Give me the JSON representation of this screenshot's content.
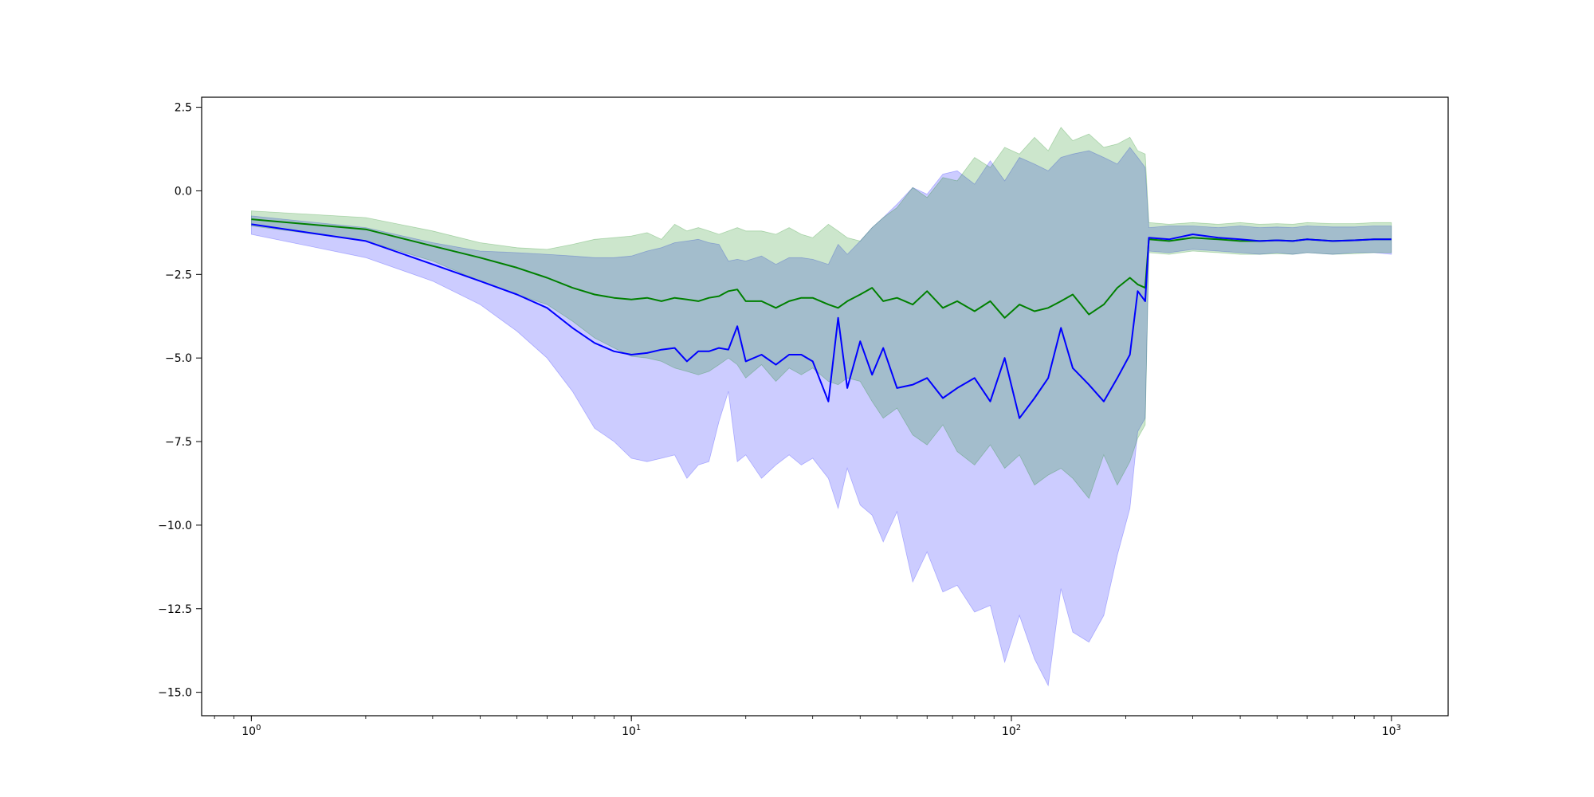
{
  "chart_data": {
    "type": "line",
    "title": "",
    "xlabel": "",
    "ylabel": "",
    "xscale": "log",
    "xlim": [
      0.74,
      1410
    ],
    "ylim": [
      -15.7,
      2.8
    ],
    "grid": false,
    "legend": "none",
    "x_ticks": [
      {
        "value": 1,
        "base": "10",
        "exp": "0"
      },
      {
        "value": 10,
        "base": "10",
        "exp": "1"
      },
      {
        "value": 100,
        "base": "10",
        "exp": "2"
      },
      {
        "value": 1000,
        "base": "10",
        "exp": "3"
      }
    ],
    "y_ticks": [
      {
        "value": 2.5,
        "label": "2.5"
      },
      {
        "value": 0.0,
        "label": "0.0"
      },
      {
        "value": -2.5,
        "label": "−2.5"
      },
      {
        "value": -5.0,
        "label": "−5.0"
      },
      {
        "value": -7.5,
        "label": "−7.5"
      },
      {
        "value": -10.0,
        "label": "−10.0"
      },
      {
        "value": -12.5,
        "label": "−12.5"
      },
      {
        "value": -15.0,
        "label": "−15.0"
      }
    ],
    "series": [
      {
        "color": "#0000ff",
        "band_opacity": 0.2,
        "x": [
          1,
          2,
          3,
          4,
          5,
          6,
          7,
          8,
          9,
          10,
          11,
          12,
          13,
          14,
          15,
          16,
          17,
          18,
          19,
          20,
          22,
          24,
          26,
          28,
          30,
          33,
          35,
          37,
          40,
          43,
          46,
          50,
          55,
          60,
          66,
          72,
          80,
          88,
          96,
          105,
          115,
          125,
          135,
          145,
          160,
          175,
          190,
          205,
          215,
          225,
          230,
          260,
          300,
          350,
          400,
          450,
          500,
          550,
          600,
          700,
          800,
          900,
          1000
        ],
        "y": [
          -1.0,
          -1.5,
          -2.2,
          -2.7,
          -3.1,
          -3.5,
          -4.1,
          -4.55,
          -4.8,
          -4.9,
          -4.85,
          -4.75,
          -4.7,
          -5.1,
          -4.8,
          -4.8,
          -4.7,
          -4.75,
          -4.05,
          -5.1,
          -4.9,
          -5.2,
          -4.9,
          -4.9,
          -5.1,
          -6.3,
          -3.8,
          -5.9,
          -4.5,
          -5.5,
          -4.7,
          -5.9,
          -5.8,
          -5.6,
          -6.2,
          -5.9,
          -5.6,
          -6.3,
          -5.0,
          -6.8,
          -6.2,
          -5.6,
          -4.1,
          -5.3,
          -5.8,
          -6.3,
          -5.6,
          -4.9,
          -3.0,
          -3.3,
          -1.4,
          -1.45,
          -1.3,
          -1.4,
          -1.45,
          -1.5,
          -1.48,
          -1.5,
          -1.45,
          -1.5,
          -1.48,
          -1.45,
          -1.45
        ],
        "lower": [
          -1.3,
          -2.0,
          -2.7,
          -3.4,
          -4.2,
          -5.0,
          -6.0,
          -7.1,
          -7.5,
          -8.0,
          -8.1,
          -8.0,
          -7.9,
          -8.6,
          -8.2,
          -8.1,
          -6.9,
          -6.0,
          -8.1,
          -7.9,
          -8.6,
          -8.2,
          -7.9,
          -8.2,
          -8.0,
          -8.6,
          -9.5,
          -8.3,
          -9.4,
          -9.7,
          -10.5,
          -9.6,
          -11.7,
          -10.8,
          -12.0,
          -11.8,
          -12.6,
          -12.4,
          -14.1,
          -12.7,
          -14.0,
          -14.8,
          -11.9,
          -13.2,
          -13.5,
          -12.7,
          -10.9,
          -9.5,
          -7.2,
          -6.8,
          -1.8,
          -1.85,
          -1.75,
          -1.8,
          -1.85,
          -1.9,
          -1.85,
          -1.9,
          -1.85,
          -1.9,
          -1.85,
          -1.85,
          -1.9
        ],
        "upper": [
          -0.75,
          -1.1,
          -1.55,
          -1.8,
          -1.85,
          -1.9,
          -1.95,
          -2.0,
          -2.0,
          -1.95,
          -1.8,
          -1.7,
          -1.55,
          -1.5,
          -1.45,
          -1.55,
          -1.6,
          -2.1,
          -2.05,
          -2.1,
          -1.95,
          -2.2,
          -2.0,
          -2.0,
          -2.05,
          -2.2,
          -1.6,
          -1.9,
          -1.5,
          -1.1,
          -0.8,
          -0.4,
          0.1,
          -0.1,
          0.5,
          0.6,
          0.2,
          0.9,
          0.3,
          1.0,
          0.8,
          0.6,
          1.0,
          1.1,
          1.2,
          1.0,
          0.8,
          1.3,
          1.0,
          0.7,
          -1.1,
          -1.05,
          -1.05,
          -1.1,
          -1.05,
          -1.1,
          -1.08,
          -1.1,
          -1.05,
          -1.08,
          -1.08,
          -1.05,
          -1.05
        ]
      },
      {
        "color": "#008000",
        "band_opacity": 0.2,
        "x": [
          1,
          2,
          3,
          4,
          5,
          6,
          7,
          8,
          9,
          10,
          11,
          12,
          13,
          14,
          15,
          16,
          17,
          18,
          19,
          20,
          22,
          24,
          26,
          28,
          30,
          33,
          35,
          37,
          40,
          43,
          46,
          50,
          55,
          60,
          66,
          72,
          80,
          88,
          96,
          105,
          115,
          125,
          135,
          145,
          160,
          175,
          190,
          205,
          215,
          225,
          230,
          260,
          300,
          350,
          400,
          450,
          500,
          550,
          600,
          700,
          800,
          900,
          1000
        ],
        "y": [
          -0.85,
          -1.15,
          -1.65,
          -2.0,
          -2.3,
          -2.6,
          -2.9,
          -3.1,
          -3.2,
          -3.25,
          -3.2,
          -3.3,
          -3.2,
          -3.25,
          -3.3,
          -3.2,
          -3.15,
          -3.0,
          -2.95,
          -3.3,
          -3.3,
          -3.5,
          -3.3,
          -3.2,
          -3.2,
          -3.4,
          -3.5,
          -3.3,
          -3.1,
          -2.9,
          -3.3,
          -3.2,
          -3.4,
          -3.0,
          -3.5,
          -3.3,
          -3.6,
          -3.3,
          -3.8,
          -3.4,
          -3.6,
          -3.5,
          -3.3,
          -3.1,
          -3.7,
          -3.4,
          -2.9,
          -2.6,
          -2.8,
          -2.9,
          -1.45,
          -1.5,
          -1.4,
          -1.45,
          -1.5,
          -1.5,
          -1.48,
          -1.5,
          -1.45,
          -1.5,
          -1.48,
          -1.45,
          -1.45
        ],
        "lower": [
          -1.05,
          -1.5,
          -2.1,
          -2.7,
          -3.1,
          -3.4,
          -3.9,
          -4.4,
          -4.7,
          -4.95,
          -5.0,
          -5.1,
          -5.3,
          -5.4,
          -5.5,
          -5.4,
          -5.2,
          -5.0,
          -5.2,
          -5.6,
          -5.2,
          -5.7,
          -5.3,
          -5.5,
          -5.3,
          -5.7,
          -5.8,
          -5.6,
          -5.7,
          -6.3,
          -6.8,
          -6.5,
          -7.3,
          -7.6,
          -7.0,
          -7.8,
          -8.2,
          -7.6,
          -8.3,
          -7.9,
          -8.8,
          -8.5,
          -8.3,
          -8.6,
          -9.2,
          -7.9,
          -8.8,
          -8.1,
          -7.4,
          -7.0,
          -1.85,
          -1.9,
          -1.8,
          -1.85,
          -1.9,
          -1.9,
          -1.88,
          -1.9,
          -1.85,
          -1.9,
          -1.88,
          -1.85,
          -1.85
        ],
        "upper": [
          -0.6,
          -0.8,
          -1.2,
          -1.55,
          -1.7,
          -1.75,
          -1.6,
          -1.45,
          -1.4,
          -1.35,
          -1.25,
          -1.45,
          -1.0,
          -1.2,
          -1.1,
          -1.2,
          -1.3,
          -1.2,
          -1.1,
          -1.2,
          -1.2,
          -1.3,
          -1.1,
          -1.3,
          -1.4,
          -1.0,
          -1.2,
          -1.4,
          -1.5,
          -1.1,
          -0.8,
          -0.5,
          0.1,
          -0.2,
          0.4,
          0.3,
          1.0,
          0.7,
          1.3,
          1.1,
          1.6,
          1.2,
          1.9,
          1.5,
          1.7,
          1.3,
          1.4,
          1.6,
          1.2,
          1.1,
          -0.95,
          -1.0,
          -0.95,
          -1.0,
          -0.95,
          -1.0,
          -0.98,
          -1.0,
          -0.95,
          -0.98,
          -0.98,
          -0.95,
          -0.95
        ]
      }
    ]
  }
}
